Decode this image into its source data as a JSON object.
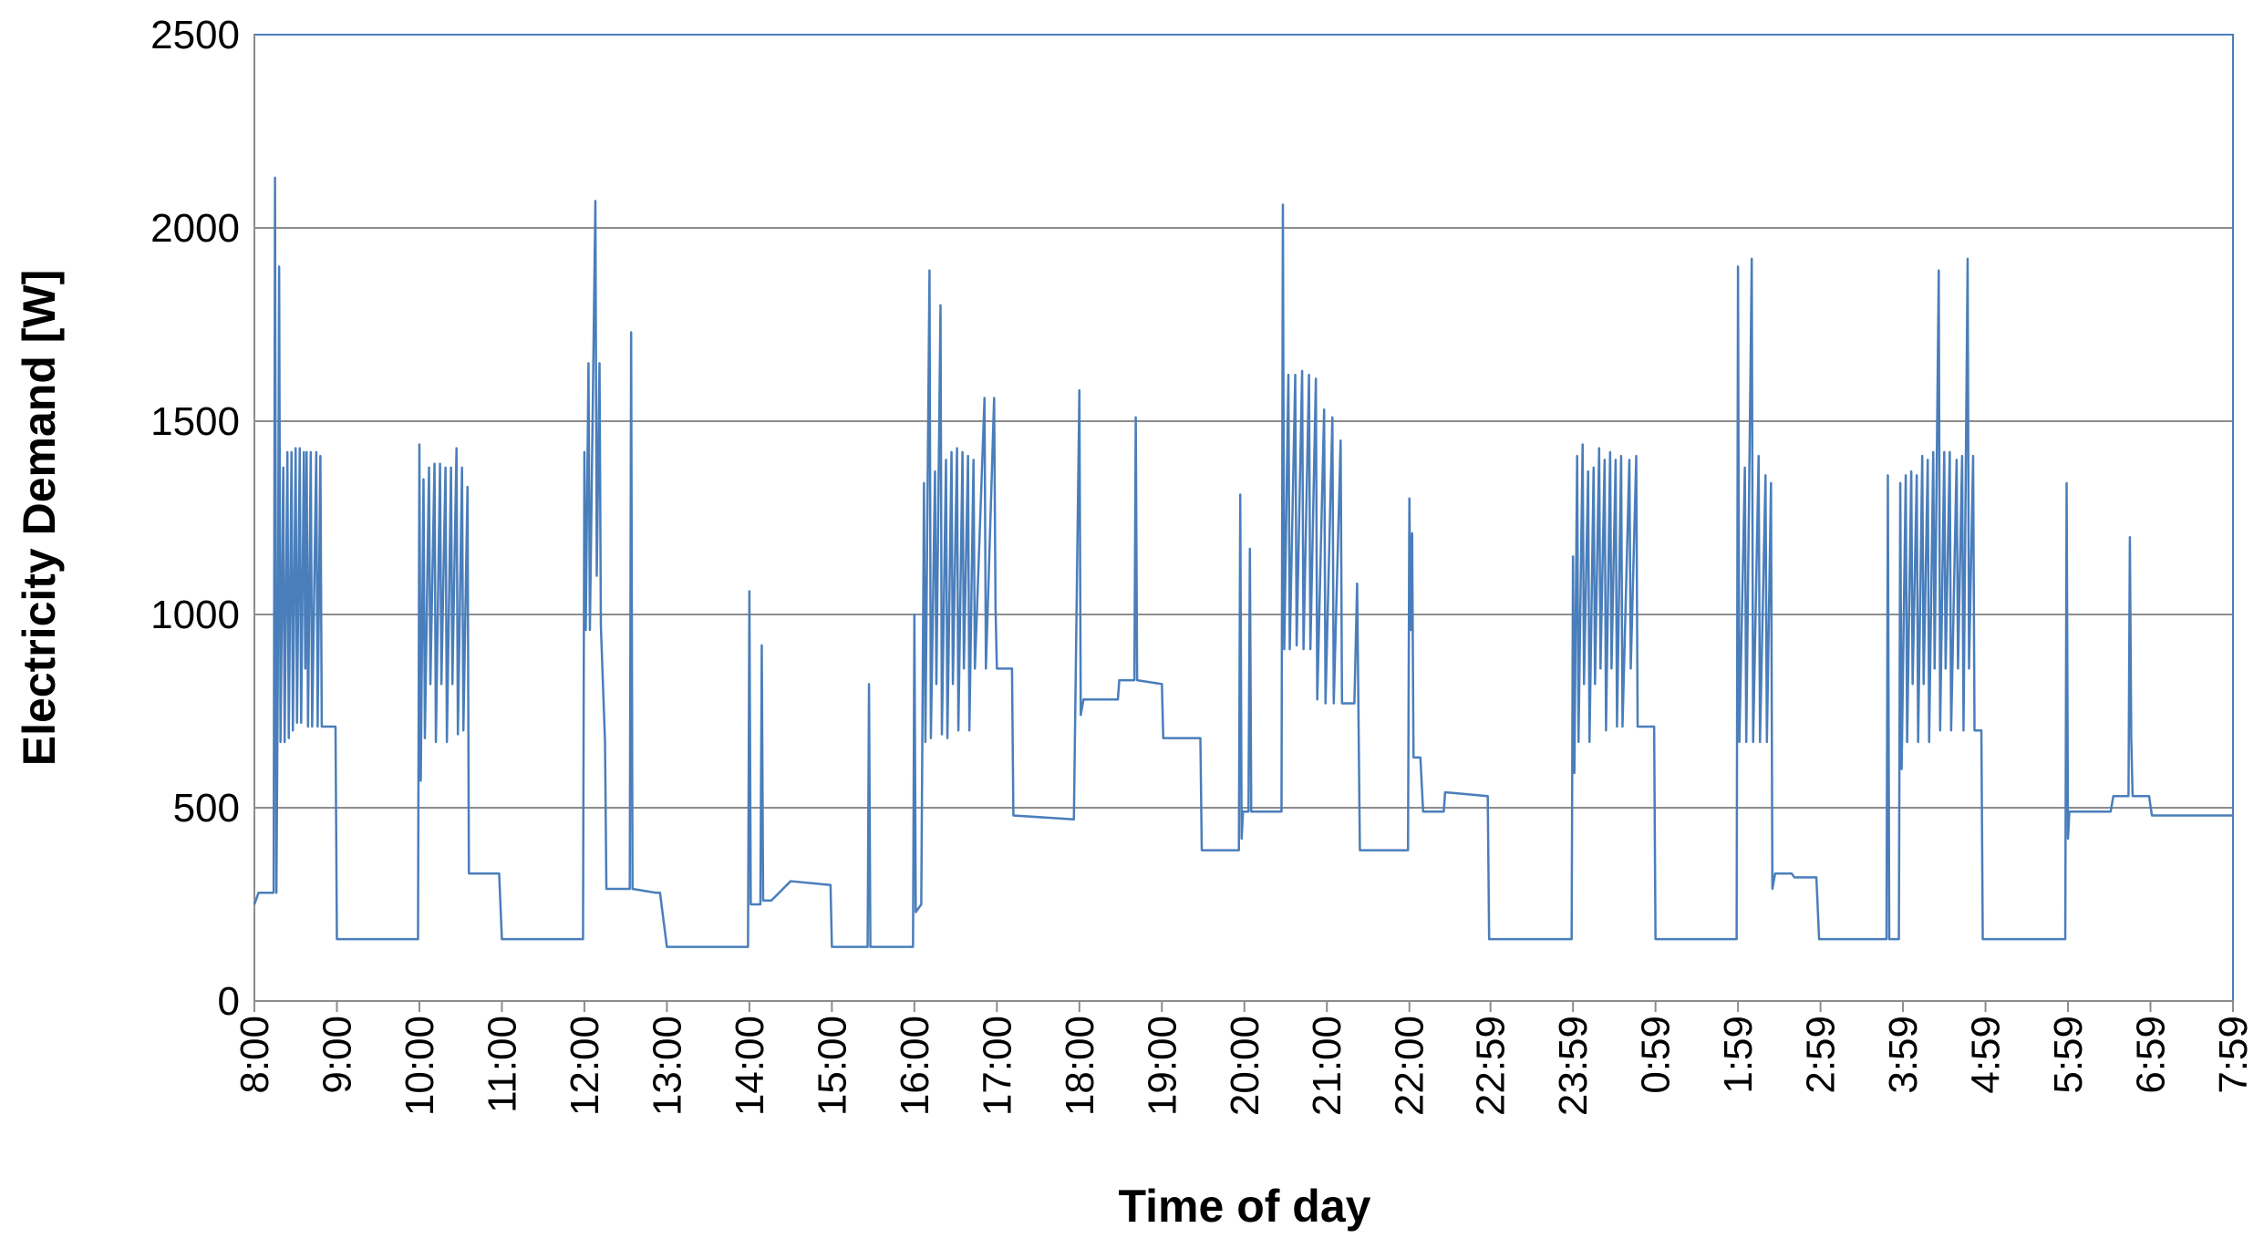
{
  "chart_data": {
    "type": "line",
    "xlabel": "Time of day",
    "ylabel": "Electricity Demand [W]",
    "color": "#4a7ebb",
    "grid": true,
    "xlim": [
      0,
      1439
    ],
    "ylim": [
      0,
      2500
    ],
    "yticks": [
      0,
      500,
      1000,
      1500,
      2000,
      2500
    ],
    "xticks": [
      {
        "value": 0,
        "label": "8:00"
      },
      {
        "value": 60,
        "label": "9:00"
      },
      {
        "value": 120,
        "label": "10:00"
      },
      {
        "value": 180,
        "label": "11:00"
      },
      {
        "value": 240,
        "label": "12:00"
      },
      {
        "value": 300,
        "label": "13:00"
      },
      {
        "value": 360,
        "label": "14:00"
      },
      {
        "value": 420,
        "label": "15:00"
      },
      {
        "value": 480,
        "label": "16:00"
      },
      {
        "value": 540,
        "label": "17:00"
      },
      {
        "value": 600,
        "label": "18:00"
      },
      {
        "value": 660,
        "label": "19:00"
      },
      {
        "value": 720,
        "label": "20:00"
      },
      {
        "value": 780,
        "label": "21:00"
      },
      {
        "value": 840,
        "label": "22:00"
      },
      {
        "value": 899,
        "label": "22:59"
      },
      {
        "value": 959,
        "label": "23:59"
      },
      {
        "value": 1019,
        "label": "0:59"
      },
      {
        "value": 1079,
        "label": "1:59"
      },
      {
        "value": 1139,
        "label": "2:59"
      },
      {
        "value": 1199,
        "label": "3:59"
      },
      {
        "value": 1259,
        "label": "4:59"
      },
      {
        "value": 1319,
        "label": "5:59"
      },
      {
        "value": 1379,
        "label": "6:59"
      },
      {
        "value": 1439,
        "label": "7:59"
      }
    ],
    "x": [
      0,
      3,
      14,
      15,
      16,
      17,
      18,
      19,
      21,
      22,
      24,
      25,
      27,
      28,
      30,
      31,
      33,
      34,
      36,
      37,
      38,
      39,
      41,
      42,
      45,
      46,
      48,
      49,
      59,
      60,
      119,
      120,
      121,
      123,
      124,
      127,
      128,
      131,
      132,
      135,
      136,
      139,
      140,
      143,
      144,
      147,
      148,
      151,
      152,
      155,
      156,
      178,
      180,
      239,
      240,
      241,
      243,
      244,
      248,
      249,
      251,
      252,
      255,
      256,
      273,
      274,
      275,
      292,
      295,
      300,
      359,
      360,
      361,
      368,
      369,
      370,
      376,
      390,
      419,
      420,
      446,
      447,
      448,
      479,
      480,
      481,
      485,
      487,
      488,
      491,
      492,
      495,
      496,
      499,
      500,
      503,
      504,
      507,
      508,
      511,
      512,
      515,
      516,
      519,
      520,
      523,
      524,
      531,
      532,
      538,
      539,
      540,
      551,
      552,
      596,
      600,
      601,
      603,
      628,
      629,
      640,
      641,
      642,
      660,
      661,
      688,
      689,
      716,
      717,
      718,
      719,
      723,
      724,
      725,
      747,
      748,
      749,
      752,
      753,
      757,
      758,
      762,
      763,
      767,
      768,
      772,
      773,
      778,
      779,
      784,
      785,
      790,
      791,
      800,
      802,
      804,
      839,
      840,
      841,
      842,
      843,
      848,
      850,
      865,
      866,
      897,
      898,
      958,
      959,
      960,
      962,
      963,
      966,
      967,
      970,
      971,
      974,
      975,
      978,
      979,
      982,
      983,
      986,
      987,
      990,
      991,
      994,
      995,
      1000,
      1001,
      1005,
      1006,
      1018,
      1019,
      1078,
      1079,
      1080,
      1084,
      1085,
      1089,
      1090,
      1094,
      1095,
      1099,
      1100,
      1103,
      1104,
      1106,
      1118,
      1120,
      1136,
      1138,
      1187,
      1188,
      1189,
      1196,
      1197,
      1198,
      1201,
      1202,
      1205,
      1206,
      1209,
      1210,
      1213,
      1214,
      1217,
      1218,
      1221,
      1222,
      1225,
      1226,
      1229,
      1230,
      1233,
      1234,
      1238,
      1239,
      1242,
      1243,
      1246,
      1247,
      1250,
      1251,
      1256,
      1257,
      1317,
      1318,
      1319,
      1320,
      1350,
      1352,
      1363,
      1364,
      1365,
      1366,
      1378,
      1380,
      1439
    ],
    "values": [
      250,
      280,
      280,
      2130,
      280,
      820,
      1900,
      670,
      1380,
      670,
      1420,
      680,
      1420,
      700,
      1430,
      720,
      1430,
      720,
      1420,
      860,
      1420,
      710,
      1420,
      710,
      1420,
      710,
      1410,
      710,
      710,
      160,
      160,
      1440,
      570,
      1350,
      680,
      1380,
      820,
      1390,
      670,
      1390,
      820,
      1380,
      670,
      1380,
      820,
      1430,
      690,
      1380,
      700,
      1330,
      330,
      330,
      160,
      160,
      1420,
      960,
      1650,
      960,
      2070,
      1100,
      1650,
      970,
      670,
      290,
      290,
      1730,
      290,
      280,
      280,
      140,
      140,
      1060,
      250,
      250,
      920,
      260,
      260,
      310,
      300,
      140,
      140,
      820,
      140,
      140,
      1000,
      230,
      250,
      1340,
      670,
      1890,
      680,
      1370,
      820,
      1800,
      690,
      1400,
      680,
      1420,
      820,
      1430,
      700,
      1420,
      860,
      1410,
      700,
      1400,
      860,
      1560,
      860,
      1560,
      1020,
      860,
      860,
      480,
      470,
      1580,
      740,
      780,
      780,
      830,
      830,
      1510,
      830,
      820,
      680,
      680,
      390,
      390,
      1310,
      420,
      490,
      490,
      1170,
      490,
      490,
      2060,
      910,
      1620,
      910,
      1620,
      920,
      1630,
      910,
      1620,
      910,
      1610,
      780,
      1530,
      770,
      1510,
      770,
      1450,
      770,
      770,
      1080,
      390,
      390,
      1300,
      960,
      1210,
      630,
      630,
      490,
      490,
      540,
      530,
      160,
      160,
      1150,
      590,
      1410,
      670,
      1440,
      820,
      1370,
      670,
      1380,
      820,
      1430,
      860,
      1400,
      700,
      1420,
      860,
      1400,
      710,
      1410,
      710,
      1400,
      860,
      1410,
      710,
      710,
      160,
      160,
      1900,
      670,
      1380,
      670,
      1920,
      670,
      1410,
      670,
      1360,
      670,
      1340,
      290,
      330,
      330,
      320,
      320,
      160,
      160,
      1360,
      160,
      160,
      1340,
      600,
      1360,
      670,
      1370,
      820,
      1360,
      670,
      1410,
      820,
      1400,
      670,
      1420,
      860,
      1890,
      700,
      1420,
      860,
      1420,
      700,
      1400,
      860,
      1410,
      700,
      1920,
      860,
      1410,
      700,
      700,
      160,
      160,
      1340,
      420,
      490,
      490,
      530,
      530,
      1200,
      680,
      530,
      530,
      480,
      480
    ]
  }
}
